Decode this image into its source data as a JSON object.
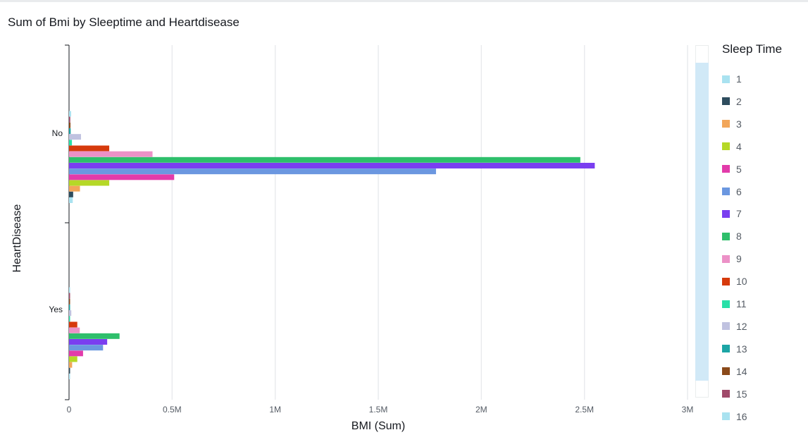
{
  "title": "Sum of Bmi by Sleeptime and Heartdisease",
  "chart_data": {
    "type": "bar",
    "orientation": "horizontal",
    "title": "Sum of Bmi by Sleeptime and Heartdisease",
    "xlabel": "BMI (Sum)",
    "ylabel": "HeartDisease",
    "xlim": [
      0,
      3000000
    ],
    "x_ticks": [
      0,
      500000,
      1000000,
      1500000,
      2000000,
      2500000,
      3000000
    ],
    "x_tick_labels": [
      "0",
      "0.5M",
      "1M",
      "1.5M",
      "2M",
      "2.5M",
      "3M"
    ],
    "grid": "vertical",
    "legend_title": "Sleep Time",
    "legend_position": "right",
    "categories": [
      "No",
      "Yes"
    ],
    "series": [
      {
        "name": "1",
        "color": "#a9e2f0",
        "values": [
          18000,
          3000
        ]
      },
      {
        "name": "2",
        "color": "#2e4d5e",
        "values": [
          20000,
          5000
        ]
      },
      {
        "name": "3",
        "color": "#f2a65a",
        "values": [
          53000,
          15000
        ]
      },
      {
        "name": "4",
        "color": "#b5d827",
        "values": [
          195000,
          40000
        ]
      },
      {
        "name": "5",
        "color": "#e23baa",
        "values": [
          510000,
          68000
        ]
      },
      {
        "name": "6",
        "color": "#6b97e0",
        "values": [
          1780000,
          165000
        ]
      },
      {
        "name": "7",
        "color": "#7a3ef0",
        "values": [
          2550000,
          185000
        ]
      },
      {
        "name": "8",
        "color": "#2ebf6b",
        "values": [
          2480000,
          245000
        ]
      },
      {
        "name": "9",
        "color": "#ec91c7",
        "values": [
          405000,
          52000
        ]
      },
      {
        "name": "10",
        "color": "#d63a0c",
        "values": [
          195000,
          40000
        ]
      },
      {
        "name": "11",
        "color": "#29e0a8",
        "values": [
          14000,
          2000
        ]
      },
      {
        "name": "12",
        "color": "#c0c2e0",
        "values": [
          58000,
          11000
        ]
      },
      {
        "name": "13",
        "color": "#1ca5a5",
        "values": [
          8000,
          2000
        ]
      },
      {
        "name": "14",
        "color": "#8a4a1a",
        "values": [
          7000,
          2000
        ]
      },
      {
        "name": "15",
        "color": "#a04a6a",
        "values": [
          6000,
          2000
        ]
      },
      {
        "name": "16",
        "color": "#a9e2f0",
        "values": [
          10000,
          2000
        ]
      }
    ]
  }
}
